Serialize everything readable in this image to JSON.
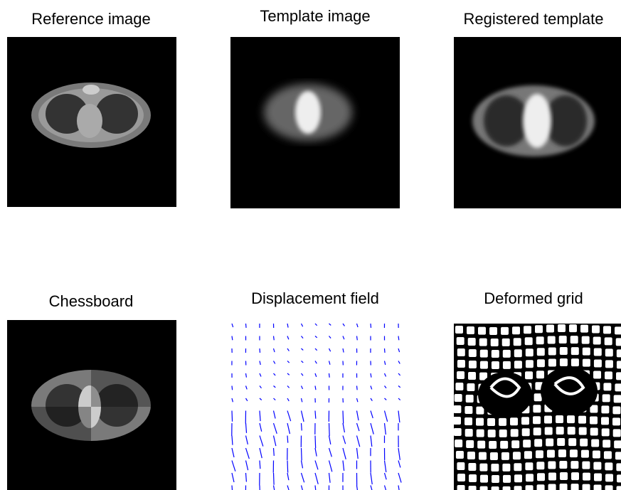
{
  "panels": [
    {
      "title": "Reference image"
    },
    {
      "title": "Template image"
    },
    {
      "title": "Registered template"
    },
    {
      "title": "Chessboard"
    },
    {
      "title": "Displacement field"
    },
    {
      "title": "Deformed grid"
    }
  ]
}
